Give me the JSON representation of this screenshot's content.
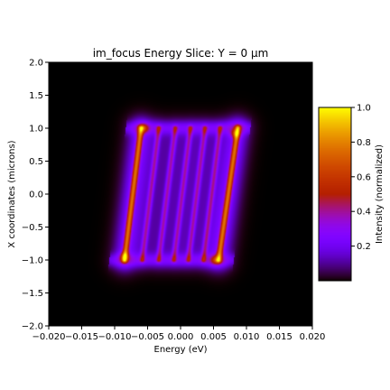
{
  "chart_data": {
    "type": "heatmap",
    "title": "im_focus Energy Slice: Y = 0 µm",
    "xlabel": "Energy (eV)",
    "ylabel": "X coordinates (microns)",
    "xlim": [
      -0.02,
      0.02
    ],
    "ylim": [
      -2.0,
      2.0
    ],
    "xticks": [
      "−0.020",
      "−0.015",
      "−0.010",
      "−0.005",
      "0.000",
      "0.005",
      "0.010",
      "0.015",
      "0.020"
    ],
    "yticks": [
      "−2.0",
      "−1.5",
      "−1.0",
      "−0.5",
      "0.0",
      "0.5",
      "1.0",
      "1.5",
      "2.0"
    ],
    "colormap": "gnuplot",
    "colorbar": {
      "label": "Intensity (normalized)",
      "range": [
        0.0,
        1.0
      ],
      "ticks": [
        "0.2",
        "0.4",
        "0.6",
        "0.8",
        "1.0"
      ]
    },
    "features": {
      "strong_lines": [
        {
          "from": [
            -0.0085,
            -1.0
          ],
          "to": [
            -0.006,
            1.0
          ],
          "intensity": 0.62
        },
        {
          "from": [
            0.0058,
            -1.0
          ],
          "to": [
            0.0087,
            1.0
          ],
          "intensity": 0.62
        }
      ],
      "weak_lines_from_x": [
        -0.0058,
        -0.0033,
        -0.001,
        0.0012,
        0.0035
      ],
      "weak_line_intensity": 0.32,
      "hot_spots": [
        {
          "x": -0.0055,
          "y": 1.0,
          "v": 0.8
        },
        {
          "x": -0.0085,
          "y": -0.95,
          "v": 0.8
        },
        {
          "x": 0.0083,
          "y": 0.92,
          "v": 0.82
        },
        {
          "x": 0.0053,
          "y": -1.0,
          "v": 0.8
        }
      ]
    }
  }
}
